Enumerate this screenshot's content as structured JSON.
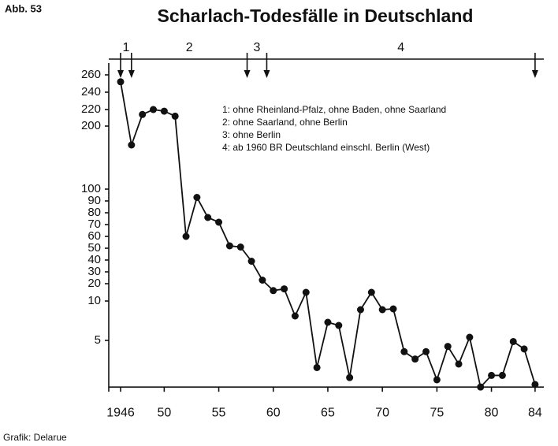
{
  "figure_label": "Abb. 53",
  "credit": "Grafik: Delarue",
  "chart_data": {
    "type": "line",
    "title": "Scharlach-Todesfälle in Deutschland",
    "x": [
      1946,
      1947,
      1948,
      1949,
      1950,
      1951,
      1952,
      1953,
      1954,
      1955,
      1956,
      1957,
      1958,
      1959,
      1960,
      1961,
      1962,
      1963,
      1964,
      1965,
      1966,
      1967,
      1968,
      1969,
      1970,
      1971,
      1972,
      1973,
      1974,
      1975,
      1976,
      1977,
      1978,
      1979,
      1980,
      1981,
      1982,
      1983,
      1984
    ],
    "values": [
      252,
      170,
      214,
      220,
      218,
      212,
      60,
      93,
      76,
      72,
      52,
      51,
      39,
      23,
      16,
      17,
      8.1,
      15,
      3.1,
      7.3,
      6.9,
      2.6,
      8.9,
      15,
      8.9,
      9,
      4.1,
      3.6,
      4.1,
      2.5,
      4.5,
      3.3,
      5.4,
      2.2,
      2.7,
      2.7,
      4.9,
      4.3,
      2.3
    ],
    "color": "#111111",
    "xlim": [
      1945,
      1985
    ],
    "xticks": [
      {
        "value": 1946,
        "label": "1946"
      },
      {
        "value": 1950,
        "label": "50"
      },
      {
        "value": 1955,
        "label": "55"
      },
      {
        "value": 1960,
        "label": "60"
      },
      {
        "value": 1965,
        "label": "65"
      },
      {
        "value": 1970,
        "label": "70"
      },
      {
        "value": 1975,
        "label": "75"
      },
      {
        "value": 1980,
        "label": "80"
      },
      {
        "value": 1984,
        "label": "84"
      }
    ],
    "ylim": [
      2.2,
      260
    ],
    "yticks": [
      260,
      240,
      220,
      200,
      100,
      90,
      80,
      70,
      60,
      50,
      40,
      30,
      20,
      10,
      5
    ],
    "period_marks": [
      1946,
      1947,
      1957.6,
      1959.4,
      1984
    ],
    "period_labels": [
      "1",
      "2",
      "3",
      "4"
    ],
    "notes": [
      "1: ohne Rheinland-Pfalz, ohne Baden, ohne Saarland",
      "2: ohne Saarland, ohne Berlin",
      "3: ohne Berlin",
      "4: ab 1960 BR Deutschland einschl. Berlin (West)"
    ]
  }
}
